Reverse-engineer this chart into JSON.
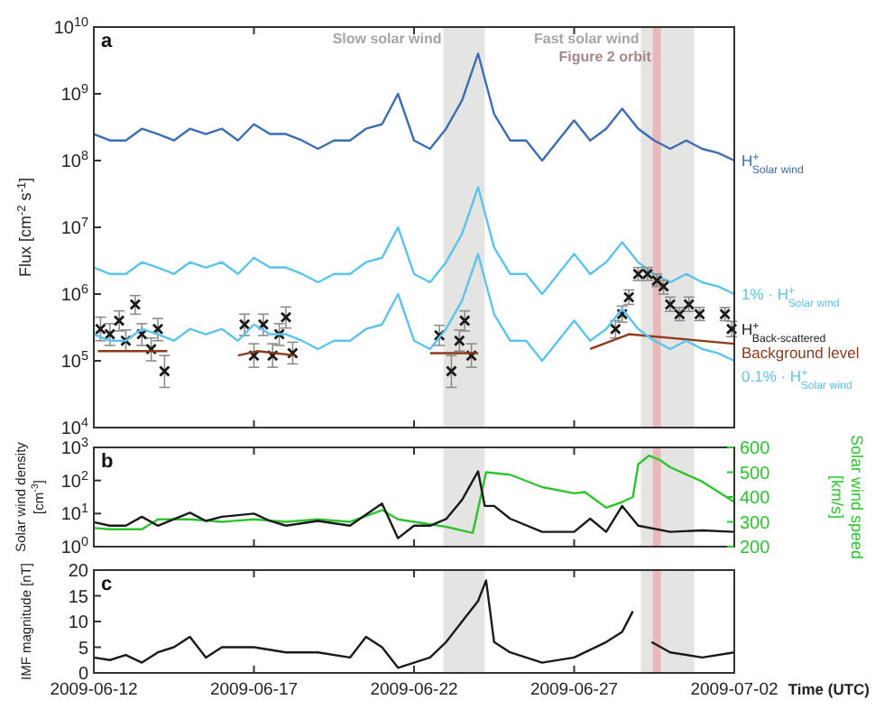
{
  "chart_data": [
    {
      "type": "line",
      "title": "a",
      "ylabel": "Flux [cm$^{-2}$ s$^{-1}$]",
      "log": true,
      "tick_labels": "y",
      "xlim": [
        "2009-06-12",
        "2009-07-02"
      ],
      "xticks": [
        "2009-06-12",
        "2009-06-17",
        "2009-06-22",
        "2009-06-27",
        "2009-07-02"
      ],
      "ylim": [
        10000,
        10000000000
      ],
      "yticks": [
        {
          "value": 10000,
          "label": "10$^{4}$"
        },
        {
          "value": 100000,
          "label": "10$^{5}$"
        },
        {
          "value": 1000000,
          "label": "10$^{6}$"
        },
        {
          "value": 10000000,
          "label": "10$^{7}$"
        },
        {
          "value": 100000000,
          "label": "10$^{8}$"
        },
        {
          "value": 1000000000,
          "label": "10$^{9}$"
        },
        {
          "value": 10000000000,
          "label": "10$^{10}$"
        }
      ],
      "x": [
        "2009-06-12",
        "2009-06-12T12:00",
        "2009-06-13",
        "2009-06-13T12:00",
        "2009-06-14",
        "2009-06-14T12:00",
        "2009-06-15",
        "2009-06-15T12:00",
        "2009-06-16",
        "2009-06-16T12:00",
        "2009-06-17",
        "2009-06-17T12:00",
        "2009-06-18",
        "2009-06-18T12:00",
        "2009-06-19",
        "2009-06-19T12:00",
        "2009-06-20",
        "2009-06-20T12:00",
        "2009-06-21",
        "2009-06-21T12:00",
        "2009-06-22",
        "2009-06-22T12:00",
        "2009-06-23",
        "2009-06-23T12:00",
        "2009-06-24",
        "2009-06-24T12:00",
        "2009-06-25",
        "2009-06-25T12:00",
        "2009-06-26",
        "2009-06-26T12:00",
        "2009-06-27",
        "2009-06-27T12:00",
        "2009-06-28",
        "2009-06-28T12:00",
        "2009-06-29",
        "2009-06-29T12:00",
        "2009-06-30",
        "2009-06-30T12:00",
        "2009-07-01",
        "2009-07-01T12:00",
        "2009-07-02"
      ],
      "bands": [
        {
          "axis": "x",
          "from": "2009-06-22T22:00",
          "to": "2009-06-24T05:00",
          "label": "Slow solar wind",
          "color": "#e4e4e2"
        },
        {
          "axis": "x",
          "from": "2009-06-29T02:00",
          "to": "2009-06-30T18:00",
          "label": "Fast solar wind",
          "color": "#e4e4e2"
        },
        {
          "axis": "x",
          "from": "2009-06-29T11:00",
          "to": "2009-06-29T17:00",
          "label": "Figure 2 orbit",
          "color": "#e9b9b9"
        }
      ],
      "series": [
        {
          "name": "H$^{+}$$_{Solar wind}$",
          "color": "#3b6db3",
          "values": [
            250000000.0,
            200000000.0,
            200000000.0,
            300000000.0,
            250000000.0,
            200000000.0,
            300000000.0,
            250000000.0,
            300000000.0,
            200000000.0,
            350000000.0,
            250000000.0,
            250000000.0,
            200000000.0,
            150000000.0,
            200000000.0,
            200000000.0,
            300000000.0,
            350000000.0,
            1000000000.0,
            200000000.0,
            150000000.0,
            300000000.0,
            800000000.0,
            4000000000.0,
            500000000.0,
            200000000.0,
            200000000.0,
            100000000.0,
            200000000.0,
            400000000.0,
            200000000.0,
            300000000.0,
            600000000.0,
            300000000.0,
            200000000.0,
            150000000.0,
            200000000.0,
            150000000.0,
            130000000.0,
            100000000.0
          ]
        },
        {
          "name": "1% · H$^{+}$$_{Solar wind}$",
          "color": "#5bc4ee",
          "values": [
            2500000.0,
            2000000.0,
            2000000.0,
            3000000.0,
            2500000.0,
            2000000.0,
            3000000.0,
            2500000.0,
            3000000.0,
            2000000.0,
            3500000.0,
            2500000.0,
            2500000.0,
            2000000.0,
            1500000.0,
            2000000.0,
            2000000.0,
            3000000.0,
            3500000.0,
            10000000.0,
            2000000.0,
            1500000.0,
            3000000.0,
            8000000.0,
            40000000.0,
            5000000.0,
            2000000.0,
            2000000.0,
            1000000.0,
            2000000.0,
            4000000.0,
            2000000.0,
            3000000.0,
            6000000.0,
            3000000.0,
            2000000.0,
            1500000.0,
            2000000.0,
            1500000.0,
            1300000.0,
            1000000.0
          ]
        },
        {
          "name": "H$^{+}$$_{Back-scattered}$",
          "type": "scatter",
          "marker": "cross",
          "color": "#1a1a1a",
          "x": [
            "2009-06-12T05:00",
            "2009-06-12T12:00",
            "2009-06-12T19:00",
            "2009-06-13T00:00",
            "2009-06-13T07:00",
            "2009-06-13T12:00",
            "2009-06-13T19:00",
            "2009-06-14T00:00",
            "2009-06-14T05:00",
            "2009-06-16T17:00",
            "2009-06-17T00:00",
            "2009-06-17T07:00",
            "2009-06-17T14:00",
            "2009-06-17T19:00",
            "2009-06-18T00:00",
            "2009-06-18T05:00",
            "2009-06-22T19:00",
            "2009-06-23T04:00",
            "2009-06-23T10:00",
            "2009-06-23T14:00",
            "2009-06-23T19:00",
            "2009-06-28T07:00",
            "2009-06-28T12:00",
            "2009-06-28T17:00",
            "2009-06-29T00:00",
            "2009-06-29T07:00",
            "2009-06-29T14:00",
            "2009-06-29T19:00",
            "2009-06-30T00:00",
            "2009-06-30T07:00",
            "2009-06-30T14:00",
            "2009-06-30T22:00",
            "2009-07-01T17:00",
            "2009-07-01T22:00"
          ],
          "values": [
            300000.0,
            250000.0,
            400000.0,
            200000.0,
            700000.0,
            250000.0,
            150000.0,
            300000.0,
            70000.0,
            350000.0,
            120000.0,
            350000.0,
            120000.0,
            250000.0,
            450000.0,
            130000.0,
            240000.0,
            70000.0,
            200000.0,
            400000.0,
            120000.0,
            300000.0,
            500000.0,
            900000.0,
            2000000.0,
            2000000.0,
            1600000.0,
            1300000.0,
            700000.0,
            500000.0,
            700000.0,
            500000.0,
            500000.0,
            300000.0
          ],
          "errors": [
            [
              200000.0,
              450000.0
            ],
            [
              170000.0,
              360000.0
            ],
            [
              280000.0,
              560000.0
            ],
            [
              140000.0,
              290000.0
            ],
            [
              500000.0,
              950000.0
            ],
            [
              170000.0,
              360000.0
            ],
            [
              100000.0,
              220000.0
            ],
            [
              200000.0,
              430000.0
            ],
            [
              40000.0,
              120000.0
            ],
            [
              240000.0,
              500000.0
            ],
            [
              80000.0,
              180000.0
            ],
            [
              240000.0,
              500000.0
            ],
            [
              80000.0,
              180000.0
            ],
            [
              170000.0,
              360000.0
            ],
            [
              310000.0,
              640000.0
            ],
            [
              90000.0,
              190000.0
            ],
            [
              170000.0,
              340000.0
            ],
            [
              40000.0,
              120000.0
            ],
            [
              140000.0,
              290000.0
            ],
            [
              280000.0,
              560000.0
            ],
            [
              80000.0,
              180000.0
            ],
            [
              220000.0,
              400000.0
            ],
            [
              380000.0,
              660000.0
            ],
            [
              700000.0,
              1150000.0
            ],
            [
              1600000.0,
              2500000.0
            ],
            [
              1600000.0,
              2500000.0
            ],
            [
              1300000.0,
              2000000.0
            ],
            [
              1000000.0,
              1600000.0
            ],
            [
              550000.0,
              900000.0
            ],
            [
              400000.0,
              630000.0
            ],
            [
              550000.0,
              900000.0
            ],
            [
              400000.0,
              630000.0
            ],
            [
              400000.0,
              630000.0
            ],
            [
              230000.0,
              390000.0
            ]
          ]
        },
        {
          "name": "Background level",
          "color": "#8b3a1a",
          "x": [
            "2009-06-12T03:00",
            "2009-06-14T07:00",
            "2009-06-15T00:00",
            "2009-06-16T12:00",
            "2009-06-17T03:00",
            "2009-06-18T07:00",
            "2009-06-20T00:00",
            "2009-06-22T12:00",
            "2009-06-24T00:00",
            "2009-06-26T00:00",
            "2009-06-27T12:00",
            "2009-06-28T17:00",
            "2009-06-30T00:00",
            "2009-07-02T00:00"
          ],
          "values": [
            140000.0,
            140000.0,
            null,
            120000.0,
            140000.0,
            120000.0,
            null,
            130000.0,
            130000.0,
            null,
            150000.0,
            250000.0,
            220000.0,
            180000.0
          ]
        },
        {
          "name": "0.1% · H$^{+}$$_{Solar wind}$",
          "color": "#5bc4ee",
          "values": [
            250000.0,
            200000.0,
            200000.0,
            300000.0,
            250000.0,
            200000.0,
            300000.0,
            250000.0,
            300000.0,
            200000.0,
            350000.0,
            250000.0,
            250000.0,
            200000.0,
            150000.0,
            200000.0,
            200000.0,
            300000.0,
            350000.0,
            1000000.0,
            200000.0,
            150000.0,
            300000.0,
            800000.0,
            4000000.0,
            500000.0,
            200000.0,
            200000.0,
            100000.0,
            200000.0,
            400000.0,
            200000.0,
            300000.0,
            600000.0,
            300000.0,
            200000.0,
            150000.0,
            200000.0,
            150000.0,
            130000.0,
            100000.0
          ]
        }
      ]
    },
    {
      "type": "line",
      "title": "b",
      "ylabel": "Solar wind density\n[cm$^{-3}$]",
      "y2label": "Solar wind speed\n[km/s]",
      "log": true,
      "tick_labels": "y",
      "xlim": [
        "2009-06-12",
        "2009-07-02"
      ],
      "xticks": [
        "2009-06-12",
        "2009-06-17",
        "2009-06-22",
        "2009-06-27",
        "2009-07-02"
      ],
      "ylim": [
        1,
        1000
      ],
      "yticks": [
        {
          "value": 1,
          "label": "10$^{0}$"
        },
        {
          "value": 10,
          "label": "10$^{1}$"
        },
        {
          "value": 100,
          "label": "10$^{2}$"
        },
        {
          "value": 1000,
          "label": "10$^{3}$"
        }
      ],
      "y2lim": [
        200,
        600
      ],
      "y2ticks": [
        200,
        300,
        400,
        500,
        600
      ],
      "bands": [
        {
          "axis": "x",
          "from": "2009-06-22T22:00",
          "to": "2009-06-24T05:00",
          "color": "#e4e4e2"
        },
        {
          "axis": "x",
          "from": "2009-06-29T02:00",
          "to": "2009-06-30T18:00",
          "color": "#e4e4e2"
        },
        {
          "axis": "x",
          "from": "2009-06-29T11:00",
          "to": "2009-06-29T17:00",
          "color": "#e9b9b9"
        }
      ],
      "series": [
        {
          "color": "#2fc42f",
          "axis": "y2",
          "x": [
            "2009-06-12",
            "2009-06-12T12:00",
            "2009-06-13T12:00",
            "2009-06-14",
            "2009-06-15",
            "2009-06-16",
            "2009-06-17",
            "2009-06-18",
            "2009-06-19",
            "2009-06-20",
            "2009-06-21",
            "2009-06-21T12:00",
            "2009-06-22",
            "2009-06-23",
            "2009-06-23T20:00",
            "2009-06-24T06:00",
            "2009-06-25",
            "2009-06-26",
            "2009-06-27",
            "2009-06-27T08:00",
            "2009-06-28",
            "2009-06-28T12:00",
            "2009-06-28T20:00",
            "2009-06-29",
            "2009-06-29T08:00",
            "2009-06-29T16:00",
            "2009-06-30",
            "2009-07-01",
            "2009-07-02"
          ],
          "values": [
            275,
            270,
            270,
            310,
            310,
            300,
            310,
            300,
            310,
            300,
            347,
            310,
            300,
            280,
            255,
            500,
            490,
            440,
            415,
            420,
            357,
            380,
            400,
            532,
            567,
            550,
            520,
            462,
            380
          ]
        },
        {
          "color": "#1a1a1a",
          "x": [
            "2009-06-12",
            "2009-06-12T12:00",
            "2009-06-13",
            "2009-06-13T12:00",
            "2009-06-14",
            "2009-06-15",
            "2009-06-15T12:00",
            "2009-06-16",
            "2009-06-17",
            "2009-06-17T12:00",
            "2009-06-18",
            "2009-06-19",
            "2009-06-20",
            "2009-06-21",
            "2009-06-21T12:00",
            "2009-06-22",
            "2009-06-22T12:00",
            "2009-06-23",
            "2009-06-23T12:00",
            "2009-06-24",
            "2009-06-24T05:00",
            "2009-06-24T12:00",
            "2009-06-25",
            "2009-06-26",
            "2009-06-27",
            "2009-06-27T12:00",
            "2009-06-28",
            "2009-06-28T12:00",
            "2009-06-29",
            "2009-06-30",
            "2009-07-01",
            "2009-07-02"
          ],
          "values": [
            5.5,
            4.3,
            4.3,
            8,
            4.3,
            10.6,
            6,
            8,
            10,
            6,
            4.3,
            6,
            4.3,
            20,
            1.8,
            4.3,
            4.3,
            6.8,
            26,
            190,
            17,
            17,
            7,
            2.8,
            2.8,
            7,
            2.8,
            17,
            4.3,
            2.8,
            3.1,
            2.8
          ]
        }
      ]
    },
    {
      "type": "line",
      "title": "c",
      "ylabel": "IMF magnitude [nT]",
      "xlabel": "Time (UTC)",
      "xlim": [
        "2009-06-12",
        "2009-07-02"
      ],
      "xticks": [
        "2009-06-12",
        "2009-06-17",
        "2009-06-22",
        "2009-06-27",
        "2009-07-02"
      ],
      "ylim": [
        0,
        20
      ],
      "yticks": [
        0,
        5,
        10,
        15,
        20
      ],
      "bands": [
        {
          "axis": "x",
          "from": "2009-06-22T22:00",
          "to": "2009-06-24T05:00",
          "color": "#e4e4e2"
        },
        {
          "axis": "x",
          "from": "2009-06-29T02:00",
          "to": "2009-06-30T18:00",
          "color": "#e4e4e2"
        },
        {
          "axis": "x",
          "from": "2009-06-29T11:00",
          "to": "2009-06-29T17:00",
          "color": "#e9b9b9"
        }
      ],
      "series": [
        {
          "color": "#1a1a1a",
          "x": [
            "2009-06-12",
            "2009-06-12T12:00",
            "2009-06-13",
            "2009-06-13T12:00",
            "2009-06-14",
            "2009-06-14T12:00",
            "2009-06-15",
            "2009-06-15T12:00",
            "2009-06-16",
            "2009-06-17",
            "2009-06-18",
            "2009-06-19",
            "2009-06-20",
            "2009-06-20T12:00",
            "2009-06-21",
            "2009-06-21T12:00",
            "2009-06-22",
            "2009-06-22T12:00",
            "2009-06-23",
            "2009-06-23T12:00",
            "2009-06-24",
            "2009-06-24T06:00",
            "2009-06-24T12:00",
            "2009-06-25",
            "2009-06-26",
            "2009-06-27",
            "2009-06-28",
            "2009-06-28T12:00",
            "2009-06-28T20:00",
            "2009-06-29",
            "2009-06-29T10:00",
            "2009-06-30",
            "2009-07-01",
            "2009-07-02"
          ],
          "values": [
            3,
            2.5,
            3.5,
            2,
            4,
            5,
            7,
            3,
            5,
            5,
            4,
            4,
            3,
            7,
            5,
            1,
            2,
            3,
            6,
            10,
            14,
            18,
            6,
            4,
            2,
            3,
            6,
            8,
            12,
            null,
            6,
            4,
            3,
            4
          ]
        }
      ]
    }
  ]
}
